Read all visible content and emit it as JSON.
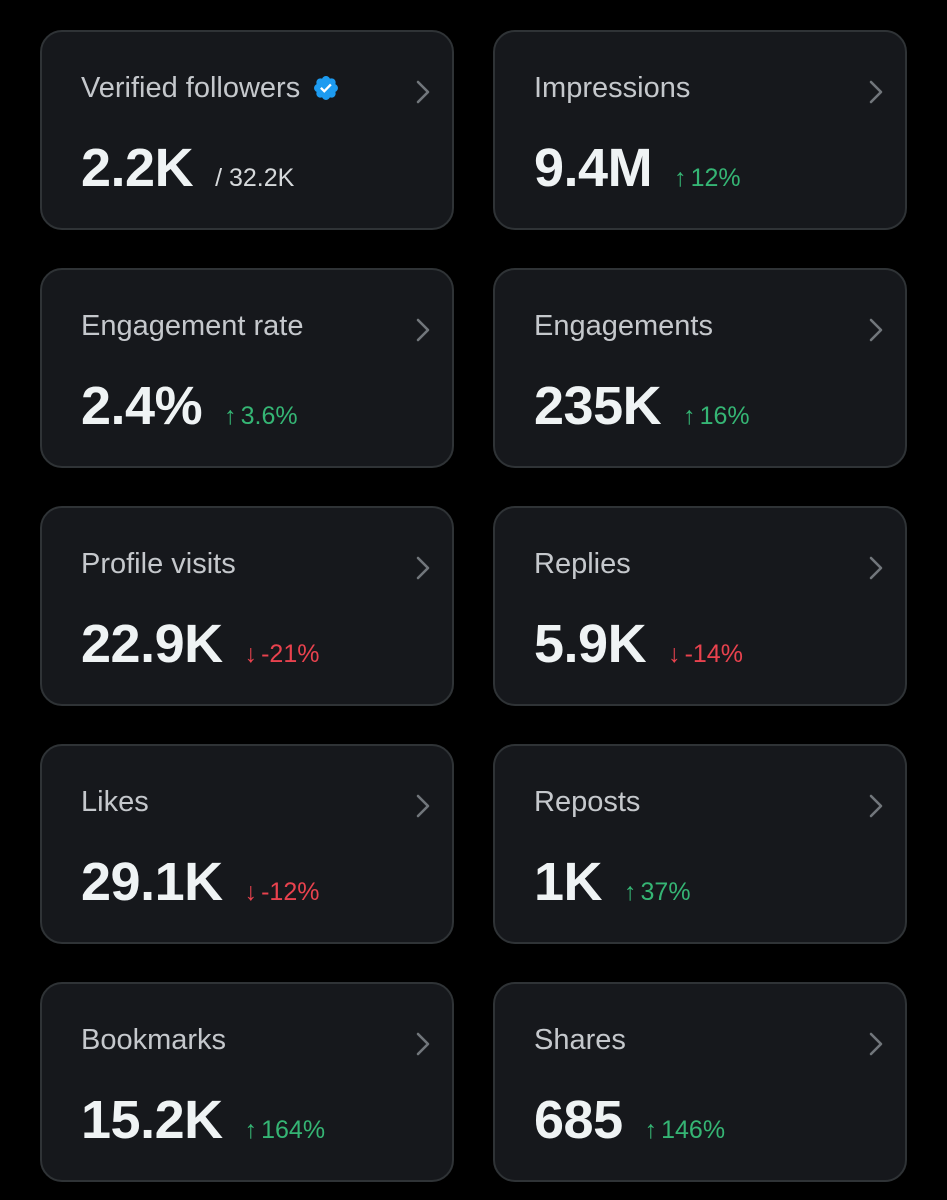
{
  "cards": [
    {
      "label": "Verified followers",
      "value": "2.2K",
      "sub": "/ 32.2K",
      "delta": "",
      "arrow": "",
      "direction": "",
      "verified": true
    },
    {
      "label": "Impressions",
      "value": "9.4M",
      "sub": "",
      "delta": "12%",
      "arrow": "↑",
      "direction": "up"
    },
    {
      "label": "Engagement rate",
      "value": "2.4%",
      "sub": "",
      "delta": "3.6%",
      "arrow": "↑",
      "direction": "up"
    },
    {
      "label": "Engagements",
      "value": "235K",
      "sub": "",
      "delta": "16%",
      "arrow": "↑",
      "direction": "up"
    },
    {
      "label": "Profile visits",
      "value": "22.9K",
      "sub": "",
      "delta": "-21%",
      "arrow": "↓",
      "direction": "down"
    },
    {
      "label": "Replies",
      "value": "5.9K",
      "sub": "",
      "delta": "-14%",
      "arrow": "↓",
      "direction": "down"
    },
    {
      "label": "Likes",
      "value": "29.1K",
      "sub": "",
      "delta": "-12%",
      "arrow": "↓",
      "direction": "down"
    },
    {
      "label": "Reposts",
      "value": "1K",
      "sub": "",
      "delta": "37%",
      "arrow": "↑",
      "direction": "up"
    },
    {
      "label": "Bookmarks",
      "value": "15.2K",
      "sub": "",
      "delta": "164%",
      "arrow": "↑",
      "direction": "up"
    },
    {
      "label": "Shares",
      "value": "685",
      "sub": "",
      "delta": "146%",
      "arrow": "↑",
      "direction": "up"
    }
  ],
  "colors": {
    "background": "#000000",
    "card": "#16181c",
    "card_border": "#2f3336",
    "up": "#35b574",
    "down": "#e8424e",
    "verified_badge": "#1d9bf0"
  },
  "icons": {
    "verified": "verified-badge-icon",
    "chevron": "chevron-right-icon"
  }
}
